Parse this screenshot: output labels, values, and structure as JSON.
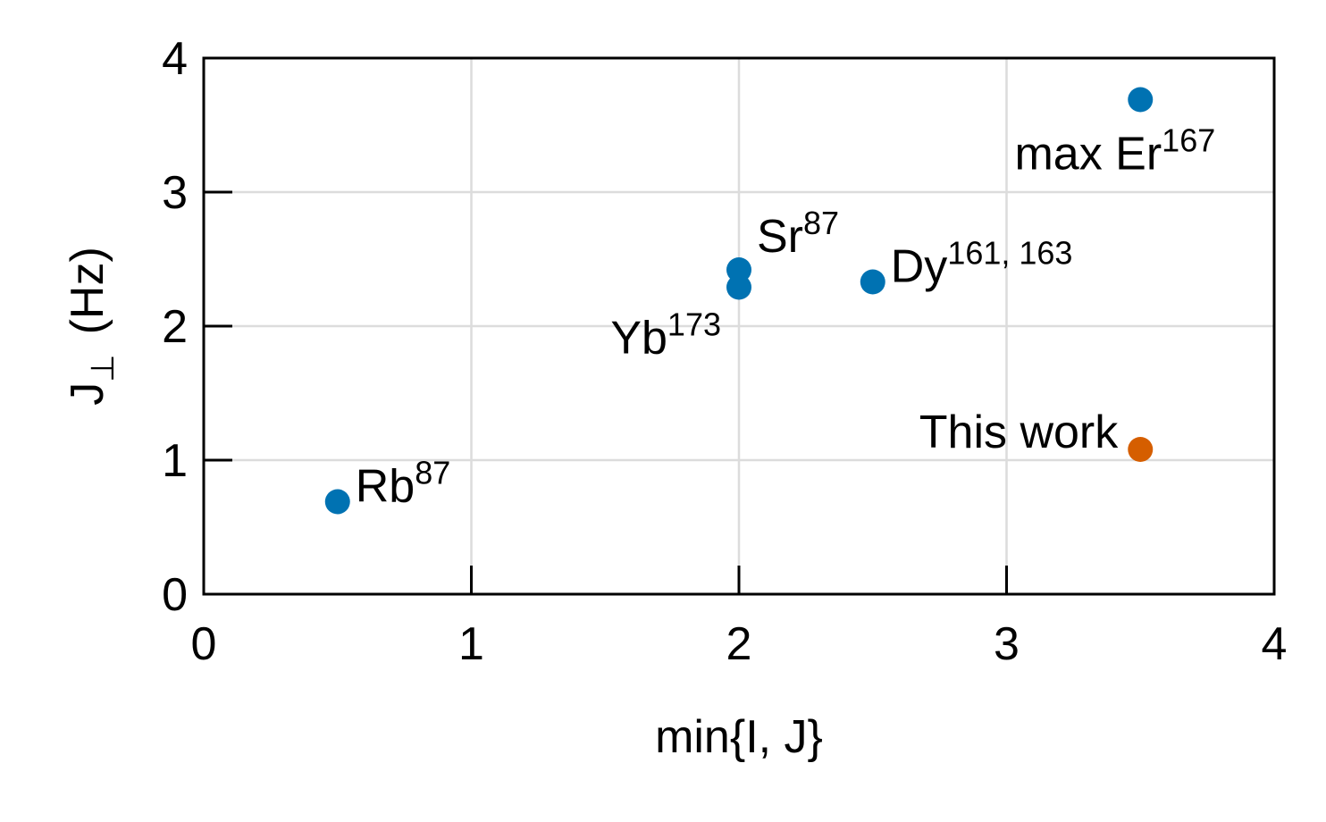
{
  "chart_data": {
    "type": "scatter",
    "xlabel": "min{I, J}",
    "ylabel_main": "J",
    "ylabel_sub": "⊥",
    "ylabel_unit": "(Hz)",
    "xlim": [
      0,
      4
    ],
    "ylim": [
      0,
      4
    ],
    "x_ticks": [
      "0",
      "1",
      "2",
      "3",
      "4"
    ],
    "y_ticks": [
      "0",
      "1",
      "2",
      "3",
      "4"
    ],
    "grid": true,
    "colors": {
      "reference": "#0072B2",
      "highlight": "#D55E00"
    },
    "points": [
      {
        "x": 0.5,
        "y": 0.69,
        "label": "Rb",
        "sup": "87",
        "color": "#0072B2"
      },
      {
        "x": 2.0,
        "y": 2.42,
        "label": "Sr",
        "sup": "87",
        "color": "#0072B2"
      },
      {
        "x": 2.0,
        "y": 2.29,
        "label": "Yb",
        "sup": "173",
        "color": "#0072B2"
      },
      {
        "x": 2.5,
        "y": 2.33,
        "label": "Dy",
        "sup": "161, 163",
        "color": "#0072B2"
      },
      {
        "x": 3.5,
        "y": 3.69,
        "label": "max Er",
        "sup": "167",
        "color": "#0072B2"
      },
      {
        "x": 3.5,
        "y": 1.08,
        "label": "This work",
        "sup": "",
        "color": "#D55E00"
      }
    ]
  }
}
